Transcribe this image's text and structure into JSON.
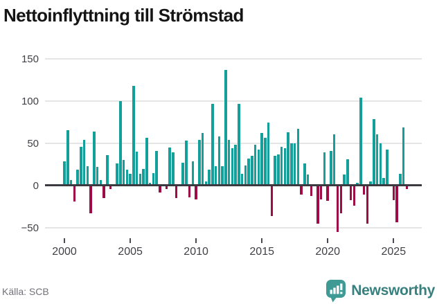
{
  "title": "Nettoinflyttning till Strömstad",
  "source": "Källa: SCB",
  "brand": {
    "name": "Newsworthy",
    "icon": "newsworthy-speech-bubble-chart-icon",
    "icon_color": "#3e9a94",
    "text_color": "#37807e"
  },
  "colors": {
    "positive_bar": "#14a09a",
    "negative_bar": "#9e0c48",
    "gridline": "#e5e5e5",
    "zero_line": "#3a3a40",
    "axis_text": "#3f3f46"
  },
  "chart_data": {
    "type": "bar",
    "title": "Nettoinflyttning till Strömstad",
    "frequency": "quarterly",
    "start": "2000-Q1",
    "xlabel": "",
    "ylabel": "",
    "ylim": [
      -57,
      150
    ],
    "grid": "horizontal",
    "y_ticks": [
      150,
      100,
      50,
      0,
      -50
    ],
    "x_ticks": [
      2000,
      2005,
      2010,
      2015,
      2020,
      2025
    ],
    "values": [
      29,
      66,
      7,
      -19,
      19,
      46,
      54,
      23,
      -33,
      64,
      22,
      7,
      -15,
      36,
      -4,
      0,
      26,
      100,
      30,
      19,
      14,
      118,
      40,
      14,
      20,
      57,
      3,
      15,
      41,
      -8,
      0,
      -4,
      45,
      39,
      -15,
      0,
      27,
      53,
      -14,
      29,
      -16,
      54,
      62,
      5,
      19,
      97,
      23,
      58,
      23,
      137,
      54,
      44,
      48,
      97,
      14,
      24,
      32,
      35,
      48,
      43,
      62,
      57,
      75,
      -36,
      35,
      37,
      46,
      44,
      63,
      50,
      50,
      67,
      -11,
      26,
      13,
      -12,
      0,
      -45,
      -16,
      39,
      -18,
      41,
      61,
      -55,
      -33,
      13,
      31,
      -17,
      -24,
      3,
      104,
      -11,
      -45,
      5,
      79,
      61,
      50,
      9,
      43,
      0,
      -17,
      -43,
      14,
      69,
      -4
    ]
  }
}
